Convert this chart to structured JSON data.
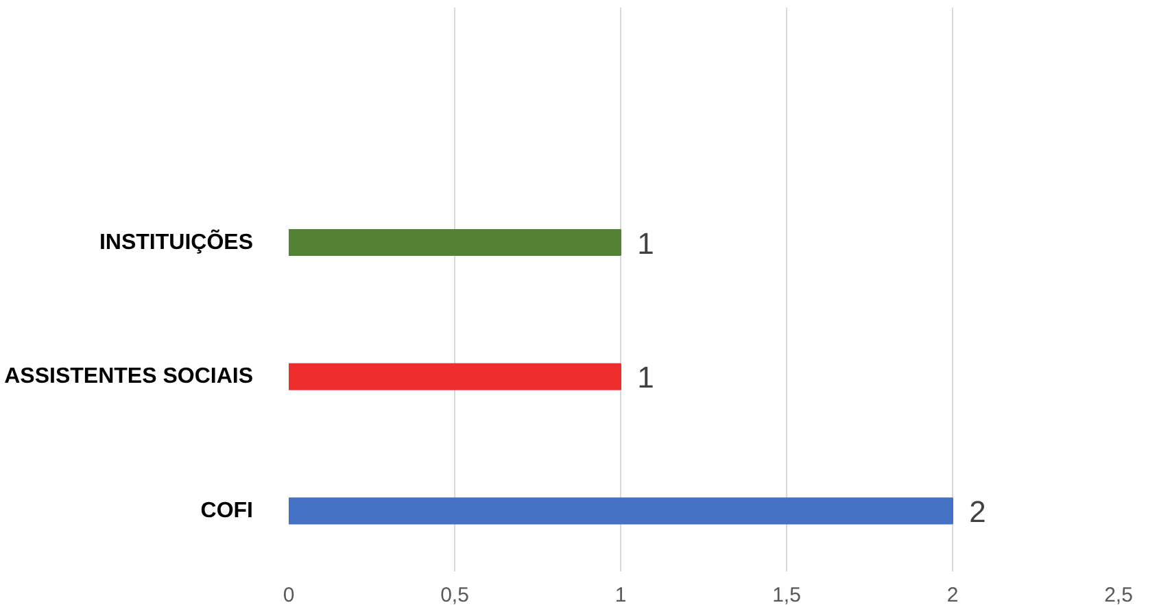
{
  "chart_data": {
    "type": "bar",
    "orientation": "horizontal",
    "categories": [
      "INSTITUIÇÕES",
      "ASSISTENTES SOCIAIS",
      "COFI"
    ],
    "values": [
      1,
      1,
      2
    ],
    "colors": [
      "#548235",
      "#ee2d2d",
      "#4472c4"
    ],
    "xlim": [
      0,
      2.5
    ],
    "xticks": [
      0,
      {
        "value": 0.5,
        "label": "0,5"
      },
      1,
      {
        "value": 1.5,
        "label": "1,5"
      },
      2,
      {
        "value": 2.5,
        "label": "2,5"
      }
    ],
    "grid": "x",
    "data_labels": true
  }
}
